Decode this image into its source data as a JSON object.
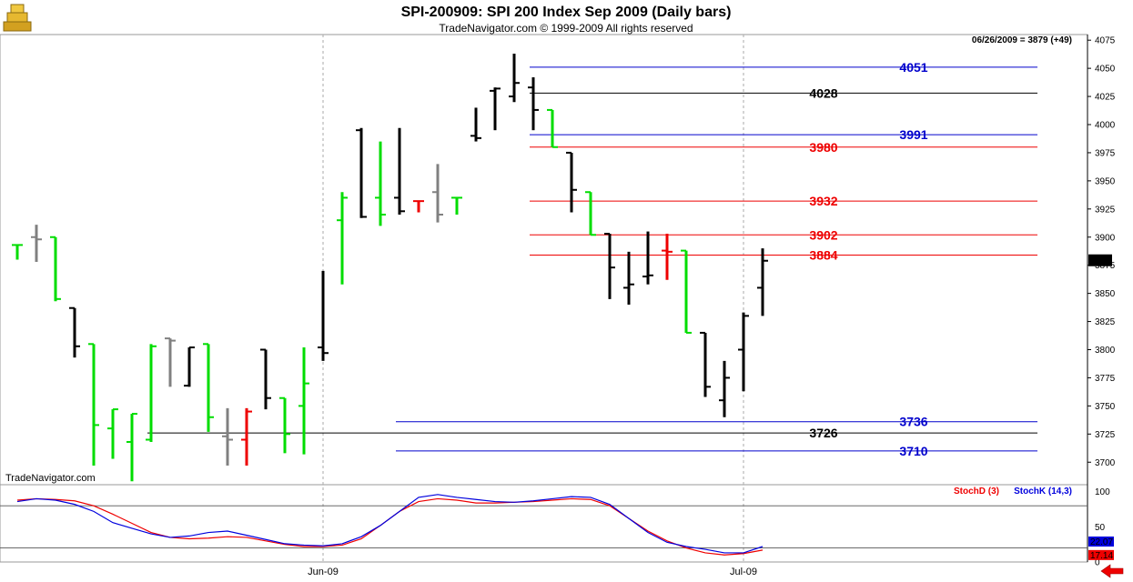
{
  "header": {
    "title": "SPI-200909:  SPI 200 Index Sep 2009  (Daily bars)",
    "subtitle": "TradeNavigator.com © 1999-2009 All rights reserved"
  },
  "watermark": "TradeNavigator.com",
  "status_readout": "06/26/2009 = 3879 (+49)",
  "last_price_label": "3879",
  "icons": {
    "logo": "gold-ingots-logo-icon",
    "nav": "red-left-arrow-icon"
  },
  "colors": {
    "up": "#00dd00",
    "down": "#000000",
    "grey": "#808080",
    "red": "#ee0000",
    "blue": "#0000cc",
    "stoch_d": "#ee0000",
    "stoch_k": "#0000dd"
  },
  "chart_data": [
    {
      "type": "ohlc",
      "ylim": [
        3680,
        4080
      ],
      "yticks": [
        3700,
        3725,
        3750,
        3775,
        3800,
        3825,
        3850,
        3875,
        3900,
        3925,
        3950,
        3975,
        4000,
        4025,
        4050,
        4075
      ],
      "xtick_labels": [
        {
          "label": "Jun-09",
          "bar_index": 16
        },
        {
          "label": "Jul-09",
          "bar_index": 38
        }
      ],
      "bars": [
        {
          "o": 3893,
          "h": 3893,
          "l": 3880,
          "c": 3893,
          "color": "up"
        },
        {
          "o": 3900,
          "h": 3911,
          "l": 3878,
          "c": 3898,
          "color": "grey"
        },
        {
          "o": 3900,
          "h": 3900,
          "l": 3843,
          "c": 3845,
          "color": "up"
        },
        {
          "o": 3837,
          "h": 3837,
          "l": 3793,
          "c": 3803,
          "color": "down"
        },
        {
          "o": 3805,
          "h": 3805,
          "l": 3697,
          "c": 3733,
          "color": "up"
        },
        {
          "o": 3730,
          "h": 3747,
          "l": 3703,
          "c": 3747,
          "color": "up"
        },
        {
          "o": 3718,
          "h": 3743,
          "l": 3683,
          "c": 3743,
          "color": "up"
        },
        {
          "o": 3720,
          "h": 3805,
          "l": 3718,
          "c": 3803,
          "color": "up"
        },
        {
          "o": 3810,
          "h": 3810,
          "l": 3767,
          "c": 3808,
          "color": "grey"
        },
        {
          "o": 3768,
          "h": 3802,
          "l": 3767,
          "c": 3802,
          "color": "down"
        },
        {
          "o": 3805,
          "h": 3805,
          "l": 3727,
          "c": 3740,
          "color": "up"
        },
        {
          "o": 3723,
          "h": 3748,
          "l": 3697,
          "c": 3720,
          "color": "grey"
        },
        {
          "o": 3720,
          "h": 3748,
          "l": 3697,
          "c": 3745,
          "color": "red"
        },
        {
          "o": 3800,
          "h": 3800,
          "l": 3747,
          "c": 3757,
          "color": "down"
        },
        {
          "o": 3757,
          "h": 3757,
          "l": 3708,
          "c": 3725,
          "color": "up"
        },
        {
          "o": 3750,
          "h": 3802,
          "l": 3707,
          "c": 3770,
          "color": "up"
        },
        {
          "o": 3802,
          "h": 3870,
          "l": 3790,
          "c": 3797,
          "color": "down"
        },
        {
          "o": 3915,
          "h": 3940,
          "l": 3858,
          "c": 3935,
          "color": "up"
        },
        {
          "o": 3995,
          "h": 3997,
          "l": 3917,
          "c": 3918,
          "color": "down"
        },
        {
          "o": 3935,
          "h": 3985,
          "l": 3910,
          "c": 3920,
          "color": "up"
        },
        {
          "o": 3935,
          "h": 3997,
          "l": 3920,
          "c": 3923,
          "color": "down"
        },
        {
          "o": 3932,
          "h": 3932,
          "l": 3922,
          "c": 3932,
          "color": "red"
        },
        {
          "o": 3940,
          "h": 3965,
          "l": 3913,
          "c": 3920,
          "color": "grey"
        },
        {
          "o": 3935,
          "h": 3935,
          "l": 3920,
          "c": 3935,
          "color": "up"
        },
        {
          "o": 3990,
          "h": 4015,
          "l": 3985,
          "c": 3988,
          "color": "down"
        },
        {
          "o": 4030,
          "h": 4033,
          "l": 3995,
          "c": 4032,
          "color": "down"
        },
        {
          "o": 4025,
          "h": 4063,
          "l": 4020,
          "c": 4037,
          "color": "down"
        },
        {
          "o": 4033,
          "h": 4042,
          "l": 3995,
          "c": 4013,
          "color": "down"
        },
        {
          "o": 4013,
          "h": 4013,
          "l": 3980,
          "c": 3980,
          "color": "up"
        },
        {
          "o": 3975,
          "h": 3975,
          "l": 3922,
          "c": 3942,
          "color": "down"
        },
        {
          "o": 3940,
          "h": 3940,
          "l": 3902,
          "c": 3902,
          "color": "up"
        },
        {
          "o": 3903,
          "h": 3903,
          "l": 3845,
          "c": 3873,
          "color": "down"
        },
        {
          "o": 3855,
          "h": 3887,
          "l": 3840,
          "c": 3858,
          "color": "down"
        },
        {
          "o": 3865,
          "h": 3905,
          "l": 3858,
          "c": 3866,
          "color": "down"
        },
        {
          "o": 3888,
          "h": 3903,
          "l": 3862,
          "c": 3887,
          "color": "red"
        },
        {
          "o": 3888,
          "h": 3888,
          "l": 3815,
          "c": 3815,
          "color": "up"
        },
        {
          "o": 3815,
          "h": 3815,
          "l": 3758,
          "c": 3767,
          "color": "down"
        },
        {
          "o": 3755,
          "h": 3790,
          "l": 3740,
          "c": 3775,
          "color": "down"
        },
        {
          "o": 3800,
          "h": 3833,
          "l": 3763,
          "c": 3830,
          "color": "down"
        },
        {
          "o": 3855,
          "h": 3890,
          "l": 3830,
          "c": 3879,
          "color": "down"
        }
      ],
      "levels": [
        {
          "label": "4051",
          "value": 4051,
          "color": "blue",
          "from_bar": 27
        },
        {
          "label": "4028",
          "value": 4028,
          "color": "black",
          "from_bar": 27
        },
        {
          "label": "3991",
          "value": 3991,
          "color": "blue",
          "from_bar": 27
        },
        {
          "label": "3980",
          "value": 3980,
          "color": "red",
          "from_bar": 27
        },
        {
          "label": "3932",
          "value": 3932,
          "color": "red",
          "from_bar": 27
        },
        {
          "label": "3902",
          "value": 3902,
          "color": "red",
          "from_bar": 27
        },
        {
          "label": "3884",
          "value": 3884,
          "color": "red",
          "from_bar": 27
        },
        {
          "label": "3736",
          "value": 3736,
          "color": "blue",
          "from_bar": 20
        },
        {
          "label": "3726",
          "value": 3726,
          "color": "black",
          "from_bar": 7
        },
        {
          "label": "3710",
          "value": 3710,
          "color": "blue",
          "from_bar": 20
        }
      ]
    },
    {
      "type": "line",
      "ylim": [
        0,
        110
      ],
      "yticks": [
        100,
        50,
        0
      ],
      "ref_lines": [
        80,
        20
      ],
      "legend": [
        "StochD (3)",
        "StochK (14,3)"
      ],
      "value_labels": [
        "17.14",
        "22.07"
      ],
      "series": [
        {
          "name": "StochD (3)",
          "color": "stoch_d",
          "values": [
            88,
            90,
            89,
            87,
            80,
            68,
            55,
            42,
            35,
            33,
            34,
            36,
            35,
            30,
            25,
            22,
            22,
            24,
            33,
            52,
            72,
            86,
            90,
            88,
            84,
            84,
            85,
            86,
            88,
            90,
            89,
            80,
            62,
            44,
            30,
            20,
            13,
            10,
            12,
            17
          ]
        },
        {
          "name": "StochK (14,3)",
          "color": "stoch_k",
          "values": [
            86,
            90,
            88,
            82,
            72,
            56,
            48,
            40,
            35,
            37,
            42,
            44,
            38,
            32,
            26,
            24,
            23,
            26,
            36,
            52,
            72,
            92,
            96,
            92,
            89,
            86,
            85,
            87,
            90,
            93,
            92,
            82,
            62,
            42,
            28,
            22,
            18,
            13,
            13,
            22
          ]
        }
      ]
    }
  ]
}
